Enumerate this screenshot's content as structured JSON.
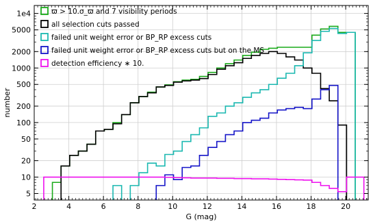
{
  "chart_data": {
    "type": "line",
    "step": true,
    "xlabel": "G (mag)",
    "ylabel": "number",
    "xlim": [
      2,
      21.3
    ],
    "ylim": [
      3.8,
      14000
    ],
    "yscale": "log",
    "grid": true,
    "legend_position": "top-left",
    "xticks": [
      2,
      4,
      6,
      8,
      10,
      12,
      14,
      16,
      18,
      20
    ],
    "yticks": [
      {
        "value": 5,
        "label": "5"
      },
      {
        "value": 10,
        "label": "10"
      },
      {
        "value": 20,
        "label": "20"
      },
      {
        "value": 50,
        "label": "50"
      },
      {
        "value": 100,
        "label": "100"
      },
      {
        "value": 200,
        "label": "200"
      },
      {
        "value": 500,
        "label": "500"
      },
      {
        "value": 1000,
        "label": "1000"
      },
      {
        "value": 2000,
        "label": "2000"
      },
      {
        "value": 5000,
        "label": "5000"
      },
      {
        "value": 10000,
        "label": "1e4"
      }
    ],
    "series": [
      {
        "name": "ϖ > 10.σ_ϖ and 7 visibility periods",
        "color": "#1aaa1a",
        "x": [
          2.8,
          3.3,
          3.8,
          4.3,
          4.8,
          5.3,
          5.8,
          6.3,
          6.8,
          7.3,
          7.8,
          8.3,
          8.8,
          9.3,
          9.8,
          10.3,
          10.8,
          11.3,
          11.8,
          12.3,
          12.8,
          13.3,
          13.8,
          14.3,
          14.8,
          15.3,
          15.8,
          16.3,
          16.8,
          17.3,
          17.8,
          18.3,
          18.8,
          19.3,
          19.8,
          20.3,
          20.8
        ],
        "y": [
          null,
          8,
          16,
          25,
          30,
          40,
          70,
          75,
          100,
          140,
          230,
          300,
          360,
          450,
          490,
          560,
          600,
          620,
          700,
          830,
          1000,
          1200,
          1400,
          1700,
          1950,
          2200,
          2300,
          2400,
          2400,
          2400,
          2400,
          4000,
          5200,
          5800,
          4500,
          4500,
          null
        ]
      },
      {
        "name": "all selection cuts passed",
        "color": "#000000",
        "x": [
          2.8,
          3.3,
          3.8,
          4.3,
          4.8,
          5.3,
          5.8,
          6.3,
          6.8,
          7.3,
          7.8,
          8.3,
          8.8,
          9.3,
          9.8,
          10.3,
          10.8,
          11.3,
          11.8,
          12.3,
          12.8,
          13.3,
          13.8,
          14.3,
          14.8,
          15.3,
          15.8,
          16.3,
          16.8,
          17.3,
          17.8,
          18.3,
          18.8,
          19.3,
          19.8,
          20.3,
          20.8
        ],
        "y": [
          null,
          null,
          16,
          25,
          30,
          40,
          70,
          75,
          95,
          140,
          230,
          300,
          350,
          450,
          480,
          550,
          580,
          600,
          640,
          760,
          950,
          1100,
          1250,
          1500,
          1700,
          1850,
          2000,
          1850,
          1600,
          1400,
          1000,
          800,
          420,
          250,
          90,
          null,
          null
        ]
      },
      {
        "name": "failed unit weight error or BP_RP excess cuts",
        "color": "#1ab8b0",
        "x": [
          2.8,
          3.3,
          3.8,
          4.3,
          4.8,
          5.3,
          5.8,
          6.3,
          6.8,
          7.3,
          7.8,
          8.3,
          8.8,
          9.3,
          9.8,
          10.3,
          10.8,
          11.3,
          11.8,
          12.3,
          12.8,
          13.3,
          13.8,
          14.3,
          14.8,
          15.3,
          15.8,
          16.3,
          16.8,
          17.3,
          17.8,
          18.3,
          18.8,
          19.3,
          19.8,
          20.3,
          20.8
        ],
        "y": [
          null,
          null,
          null,
          null,
          null,
          null,
          null,
          null,
          7,
          null,
          7,
          12,
          18,
          16,
          26,
          30,
          45,
          60,
          80,
          130,
          150,
          200,
          230,
          290,
          350,
          400,
          500,
          650,
          800,
          1100,
          1900,
          3200,
          4700,
          5300,
          4300,
          4500,
          null
        ]
      },
      {
        "name": "failed unit weight error or BP_RP excess cuts but on the MS",
        "color": "#1414c8",
        "x": [
          2.8,
          3.3,
          3.8,
          4.3,
          4.8,
          5.3,
          5.8,
          6.3,
          6.8,
          7.3,
          7.8,
          8.3,
          8.8,
          9.3,
          9.8,
          10.3,
          10.8,
          11.3,
          11.8,
          12.3,
          12.8,
          13.3,
          13.8,
          14.3,
          14.8,
          15.3,
          15.8,
          16.3,
          16.8,
          17.3,
          17.8,
          18.3,
          18.8,
          19.3,
          19.8,
          20.3,
          20.8
        ],
        "y": [
          null,
          null,
          null,
          null,
          null,
          null,
          null,
          null,
          null,
          null,
          null,
          null,
          null,
          7,
          11,
          9,
          15,
          16,
          25,
          35,
          45,
          60,
          70,
          100,
          110,
          120,
          150,
          170,
          180,
          190,
          180,
          270,
          400,
          480,
          null,
          null,
          null
        ]
      },
      {
        "name": "detection efficiency ∗ 10.",
        "color": "#ee10ee",
        "x": [
          2.8,
          3.3,
          3.8,
          4.3,
          4.8,
          5.3,
          5.8,
          6.3,
          6.8,
          7.3,
          7.8,
          8.3,
          8.8,
          9.3,
          9.8,
          10.3,
          10.8,
          11.3,
          11.8,
          12.3,
          12.8,
          13.3,
          13.8,
          14.3,
          14.8,
          15.3,
          15.8,
          16.3,
          16.8,
          17.3,
          17.8,
          18.3,
          18.8,
          19.3,
          19.8,
          20.3,
          20.8
        ],
        "y": [
          10,
          10,
          10,
          10,
          10,
          10,
          10,
          10,
          10,
          10,
          10,
          10,
          10,
          10,
          9.9,
          9.8,
          9.7,
          9.6,
          9.6,
          9.6,
          9.5,
          9.5,
          9.4,
          9.4,
          9.3,
          9.3,
          9.2,
          9.1,
          9.0,
          8.9,
          8.8,
          8.0,
          7.0,
          6.2,
          5.4,
          10,
          10
        ]
      }
    ]
  }
}
